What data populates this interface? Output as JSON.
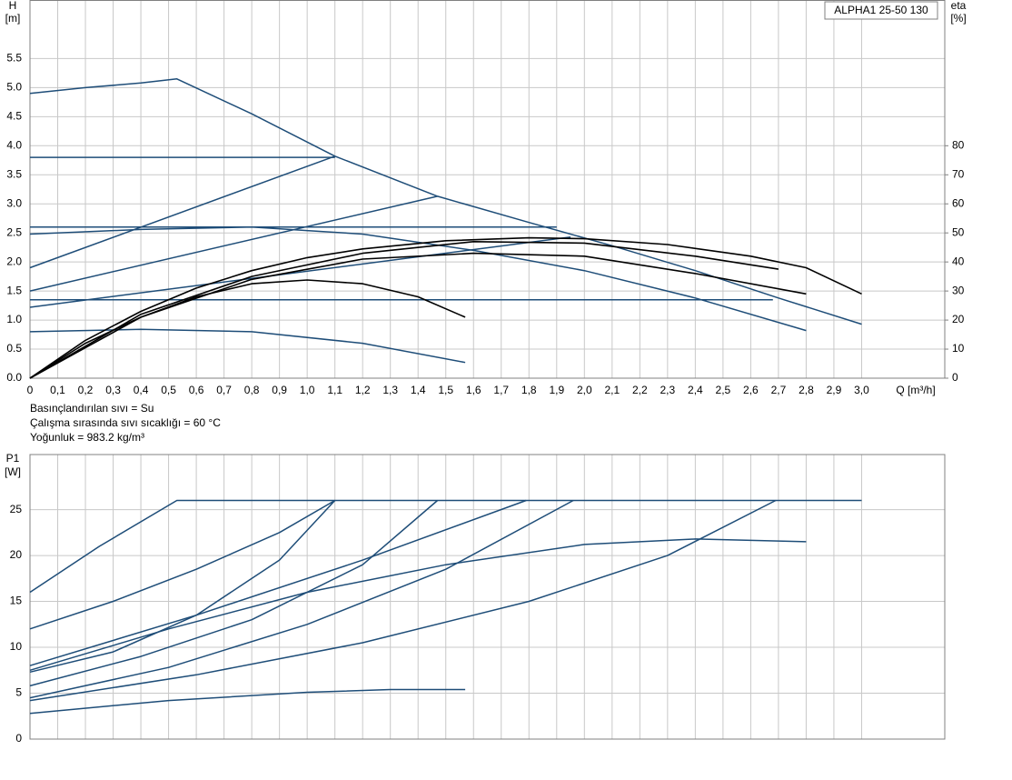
{
  "chart_data": [
    {
      "type": "line",
      "ylabel": "H",
      "yunit": "[m]",
      "y2label": "eta",
      "y2unit": "[%]",
      "xlabel": "Q [m³/h]",
      "annotation": "ALPHA1 25-50 130",
      "xlim": [
        0,
        3.3
      ],
      "ylim": [
        0,
        6.5
      ],
      "y2lim": [
        0,
        130
      ],
      "grid": true,
      "xticks": [
        0,
        {
          "value": 0.1,
          "label": "0,1"
        },
        {
          "value": 0.2,
          "label": "0,2"
        },
        {
          "value": 0.3,
          "label": "0,3"
        },
        {
          "value": 0.4,
          "label": "0,4"
        },
        {
          "value": 0.5,
          "label": "0,5"
        },
        {
          "value": 0.6,
          "label": "0,6"
        },
        {
          "value": 0.7,
          "label": "0,7"
        },
        {
          "value": 0.8,
          "label": "0,8"
        },
        {
          "value": 0.9,
          "label": "0,9"
        },
        {
          "value": 1.0,
          "label": "1,0"
        },
        {
          "value": 1.1,
          "label": "1,1"
        },
        {
          "value": 1.2,
          "label": "1,2"
        },
        {
          "value": 1.3,
          "label": "1,3"
        },
        {
          "value": 1.4,
          "label": "1,4"
        },
        {
          "value": 1.5,
          "label": "1,5"
        },
        {
          "value": 1.6,
          "label": "1,6"
        },
        {
          "value": 1.7,
          "label": "1,7"
        },
        {
          "value": 1.8,
          "label": "1,8"
        },
        {
          "value": 1.9,
          "label": "1,9"
        },
        {
          "value": 2.0,
          "label": "2,0"
        },
        {
          "value": 2.1,
          "label": "2,1"
        },
        {
          "value": 2.2,
          "label": "2,2"
        },
        {
          "value": 2.3,
          "label": "2,3"
        },
        {
          "value": 2.4,
          "label": "2,4"
        },
        {
          "value": 2.5,
          "label": "2,5"
        },
        {
          "value": 2.6,
          "label": "2,6"
        },
        {
          "value": 2.7,
          "label": "2,7"
        },
        {
          "value": 2.8,
          "label": "2,8"
        },
        {
          "value": 2.9,
          "label": "2,9"
        },
        {
          "value": 3.0,
          "label": "3,0"
        }
      ],
      "yticks": [
        {
          "value": 0,
          "label": "0.0"
        },
        0.5,
        {
          "value": 1,
          "label": "1.0"
        },
        1.5,
        {
          "value": 2,
          "label": "2.0"
        },
        2.5,
        {
          "value": 3,
          "label": "3.0"
        },
        3.5,
        {
          "value": 4,
          "label": "4.0"
        },
        4.5,
        {
          "value": 5,
          "label": "5.0"
        },
        5.5
      ],
      "y2ticks": [
        0,
        10,
        20,
        30,
        40,
        50,
        60,
        70,
        80
      ],
      "series": [
        {
          "color": "#1e4d78",
          "x": [
            0,
            0.2,
            0.4,
            0.53,
            0.8,
            1.1,
            1.47,
            1.8,
            2.1,
            2.4,
            2.7,
            3.0
          ],
          "values": [
            4.9,
            5.0,
            5.08,
            5.15,
            4.55,
            3.82,
            3.13,
            2.68,
            2.28,
            1.85,
            1.38,
            0.93
          ]
        },
        {
          "color": "#1e4d78",
          "x": [
            0,
            1.1
          ],
          "values": [
            3.8,
            3.8
          ]
        },
        {
          "color": "#1e4d78",
          "x": [
            0,
            1.1
          ],
          "values": [
            1.9,
            3.82
          ]
        },
        {
          "color": "#1e4d78",
          "x": [
            0,
            1.47
          ],
          "values": [
            1.5,
            3.13
          ]
        },
        {
          "color": "#1e4d78",
          "x": [
            0,
            1.95
          ],
          "values": [
            1.22,
            2.43
          ]
        },
        {
          "color": "#1e4d78",
          "x": [
            0,
            1.9
          ],
          "values": [
            2.6,
            2.6
          ]
        },
        {
          "color": "#1e4d78",
          "x": [
            0,
            2.68
          ],
          "values": [
            1.35,
            1.35
          ]
        },
        {
          "color": "#1e4d78",
          "x": [
            0,
            0.4,
            0.8,
            1.2,
            1.6,
            2.0,
            2.4,
            2.8
          ],
          "values": [
            2.48,
            2.56,
            2.6,
            2.48,
            2.2,
            1.85,
            1.38,
            0.82
          ]
        },
        {
          "color": "#1e4d78",
          "x": [
            0,
            0.4,
            0.8,
            1.2,
            1.57
          ],
          "values": [
            0.8,
            0.84,
            0.8,
            0.6,
            0.27
          ]
        },
        {
          "color": "#000000",
          "axis": "y2",
          "x": [
            0,
            0.2,
            0.4,
            0.6,
            0.8,
            1.0,
            1.2,
            1.5,
            1.8,
            2.0,
            2.3,
            2.6,
            2.8,
            3.0
          ],
          "values": [
            0,
            13,
            23,
            31,
            37,
            41.5,
            44.5,
            47.3,
            48.3,
            48,
            46,
            42,
            38,
            29
          ]
        },
        {
          "color": "#000000",
          "axis": "y2",
          "x": [
            0,
            0.4,
            0.8,
            1.2,
            1.6,
            2.0,
            2.4,
            2.7
          ],
          "values": [
            0,
            22,
            35,
            43,
            47,
            46.5,
            42,
            37.5
          ]
        },
        {
          "color": "#000000",
          "axis": "y2",
          "x": [
            0,
            0.4,
            0.8,
            1.2,
            1.6,
            2.0,
            2.4,
            2.8
          ],
          "values": [
            0,
            21,
            34,
            41,
            43,
            42,
            36,
            29
          ]
        },
        {
          "color": "#000000",
          "axis": "y2",
          "x": [
            0,
            0.2,
            0.4,
            0.6,
            0.8,
            1.0,
            1.2,
            1.4,
            1.57
          ],
          "values": [
            0,
            12,
            21,
            28,
            32.5,
            33.8,
            32.5,
            28,
            21
          ]
        }
      ]
    },
    {
      "type": "line",
      "ylabel": "P1",
      "yunit": "[W]",
      "xlim": [
        0,
        3.3
      ],
      "ylim": [
        0,
        31
      ],
      "grid": true,
      "show_xtick_labels": false,
      "xticks": [
        0,
        0.1,
        0.2,
        0.3,
        0.4,
        0.5,
        0.6,
        0.7,
        0.8,
        0.9,
        1.0,
        1.1,
        1.2,
        1.3,
        1.4,
        1.5,
        1.6,
        1.7,
        1.8,
        1.9,
        2.0,
        2.1,
        2.2,
        2.3,
        2.4,
        2.5,
        2.6,
        2.7,
        2.8,
        2.9,
        3.0
      ],
      "yticks": [
        0,
        5,
        10,
        15,
        20,
        25
      ],
      "series": [
        {
          "color": "#1e4d78",
          "x": [
            0,
            0.25,
            0.53,
            3.0
          ],
          "values": [
            16,
            21,
            26,
            26
          ]
        },
        {
          "color": "#1e4d78",
          "x": [
            0,
            0.3,
            0.6,
            0.9,
            1.1
          ],
          "values": [
            12,
            15,
            18.5,
            22.5,
            26
          ]
        },
        {
          "color": "#1e4d78",
          "x": [
            0,
            0.3,
            0.6,
            0.9,
            1.1
          ],
          "values": [
            7.3,
            9.5,
            13.5,
            19.5,
            26
          ]
        },
        {
          "color": "#1e4d78",
          "x": [
            0,
            0.4,
            0.8,
            1.2,
            1.47
          ],
          "values": [
            5.8,
            9,
            13,
            19,
            26
          ]
        },
        {
          "color": "#1e4d78",
          "x": [
            0,
            0.5,
            1.0,
            1.5,
            1.96
          ],
          "values": [
            4.5,
            7.8,
            12.5,
            18.5,
            26
          ]
        },
        {
          "color": "#1e4d78",
          "x": [
            0,
            0.6,
            1.2,
            1.79
          ],
          "values": [
            8,
            13.5,
            19.5,
            26
          ]
        },
        {
          "color": "#1e4d78",
          "x": [
            0,
            0.6,
            1.2,
            1.8,
            2.3,
            2.69
          ],
          "values": [
            4.2,
            7,
            10.5,
            15,
            20,
            26
          ]
        },
        {
          "color": "#1e4d78",
          "x": [
            0,
            0.5,
            1.0,
            1.5,
            2.0,
            2.4,
            2.8
          ],
          "values": [
            7.5,
            12,
            16,
            19,
            21.2,
            21.8,
            21.5
          ]
        },
        {
          "color": "#1e4d78",
          "x": [
            0,
            0.5,
            1.0,
            1.3,
            1.57
          ],
          "values": [
            2.8,
            4.2,
            5.1,
            5.4,
            5.4
          ]
        }
      ]
    }
  ],
  "notes": [
    "Basınçlandırılan sıvı = Su",
    "Çalışma sırasında sıvı sıcaklığı = 60 °C",
    "Yoğunluk = 983.2 kg/m³"
  ]
}
